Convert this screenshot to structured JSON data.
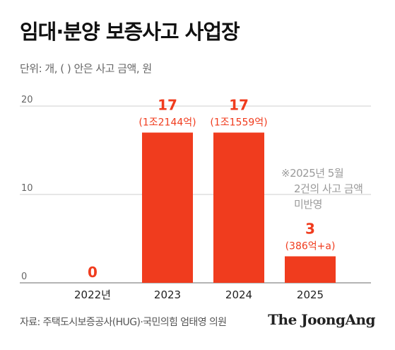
{
  "header": {
    "title": "임대·분양 보증사고 사업장",
    "unit": "단위: 개, ( ) 안은 사고 금액, 원"
  },
  "note": {
    "line1": "※2025년 5월",
    "line2": "2건의 사고 금액",
    "line3": "미반영"
  },
  "footer": {
    "source": "자료: 주택도시보증공사(HUG)·국민의힘 엄태영 의원",
    "brand": "The JoongAng"
  },
  "colors": {
    "bar": "#f03c1e",
    "grid": "#cfcfcf",
    "axis": "#888888"
  },
  "chart_data": {
    "type": "bar",
    "categories": [
      "2022년",
      "2023",
      "2024",
      "2025"
    ],
    "values": [
      0,
      17,
      17,
      3
    ],
    "value_labels": [
      "0",
      "17",
      "17",
      "3"
    ],
    "amount_labels": [
      "",
      "(1조2144억)",
      "(1조1559억)",
      "(386억+a)"
    ],
    "yticks": [
      0,
      10,
      20
    ],
    "ylim": [
      0,
      20
    ],
    "grid": true
  }
}
